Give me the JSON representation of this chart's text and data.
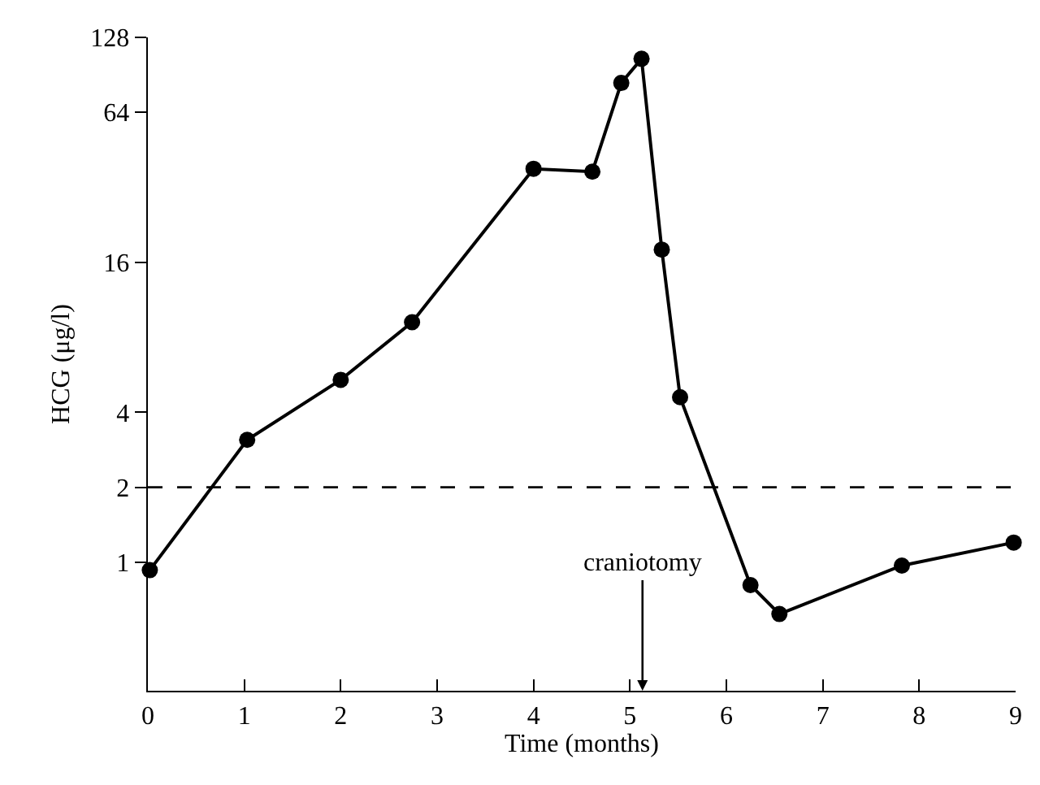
{
  "chart_data": {
    "type": "line",
    "xlabel": "Time (months)",
    "ylabel": "HCG (μg/l)",
    "series": [
      {
        "color": "#000000",
        "x": [
          0.02,
          1.03,
          2.0,
          2.74,
          4.0,
          4.61,
          4.91,
          5.12,
          5.33,
          5.52,
          6.25,
          6.55,
          7.82,
          8.98
        ],
        "values": [
          0.93,
          3.1,
          5.4,
          9.2,
          38,
          37,
          84,
          105,
          18,
          4.6,
          0.81,
          0.62,
          0.97,
          1.2
        ]
      }
    ],
    "xlim": [
      0,
      9
    ],
    "xticks": [
      0,
      1,
      2,
      3,
      4,
      5,
      6,
      7,
      8,
      9
    ],
    "ylim": [
      0.305,
      128
    ],
    "yticks": [
      1,
      2,
      4,
      16,
      64,
      128
    ],
    "log": "y",
    "grid": false,
    "marker": "circle",
    "line_style": "solid",
    "ref_lines": [
      {
        "axis": "y",
        "value": 2,
        "line_style": "dashed",
        "color": "#000000"
      }
    ],
    "annotations": [
      "craniotomy"
    ]
  }
}
